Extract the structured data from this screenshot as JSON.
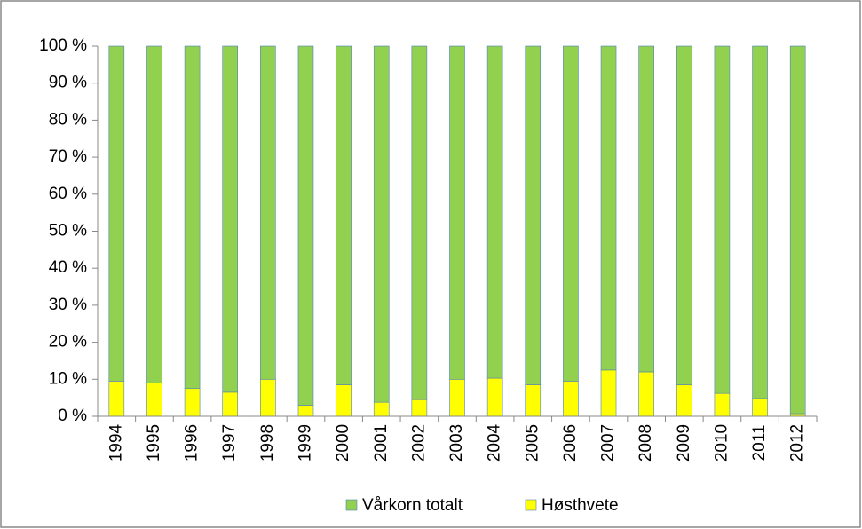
{
  "chart_data": {
    "type": "stacked_bar",
    "categories": [
      "1994",
      "1995",
      "1996",
      "1997",
      "1998",
      "1999",
      "2000",
      "2001",
      "2002",
      "2003",
      "2004",
      "2005",
      "2006",
      "2007",
      "2008",
      "2009",
      "2010",
      "2011",
      "2012"
    ],
    "series": [
      {
        "name": "Høsthvete",
        "color": "#ffff00",
        "values": [
          9.5,
          9,
          7.5,
          6.5,
          10,
          3,
          8.5,
          3.8,
          4.5,
          10,
          10.3,
          8.5,
          9.5,
          12.5,
          12,
          8.5,
          6.2,
          4.8,
          0.7
        ]
      },
      {
        "name": "Vårkorn totalt",
        "color": "#92d050",
        "values": [
          90.5,
          91,
          92.5,
          93.5,
          90,
          97,
          91.5,
          96.2,
          95.5,
          90,
          89.7,
          91.5,
          90.5,
          87.5,
          88,
          91.5,
          93.8,
          95.2,
          99.3
        ]
      }
    ],
    "ylim": [
      0,
      100
    ],
    "yticks": [
      {
        "value": 0,
        "label": "0 %"
      },
      {
        "value": 10,
        "label": "10 %"
      },
      {
        "value": 20,
        "label": "20 %"
      },
      {
        "value": 30,
        "label": "30 %"
      },
      {
        "value": 40,
        "label": "40 %"
      },
      {
        "value": 50,
        "label": "50 %"
      },
      {
        "value": 60,
        "label": "60 %"
      },
      {
        "value": 70,
        "label": "70 %"
      },
      {
        "value": 80,
        "label": "80 %"
      },
      {
        "value": 90,
        "label": "90 %"
      },
      {
        "value": 100,
        "label": "100 %"
      }
    ],
    "grid": false,
    "legend": "bottom"
  }
}
